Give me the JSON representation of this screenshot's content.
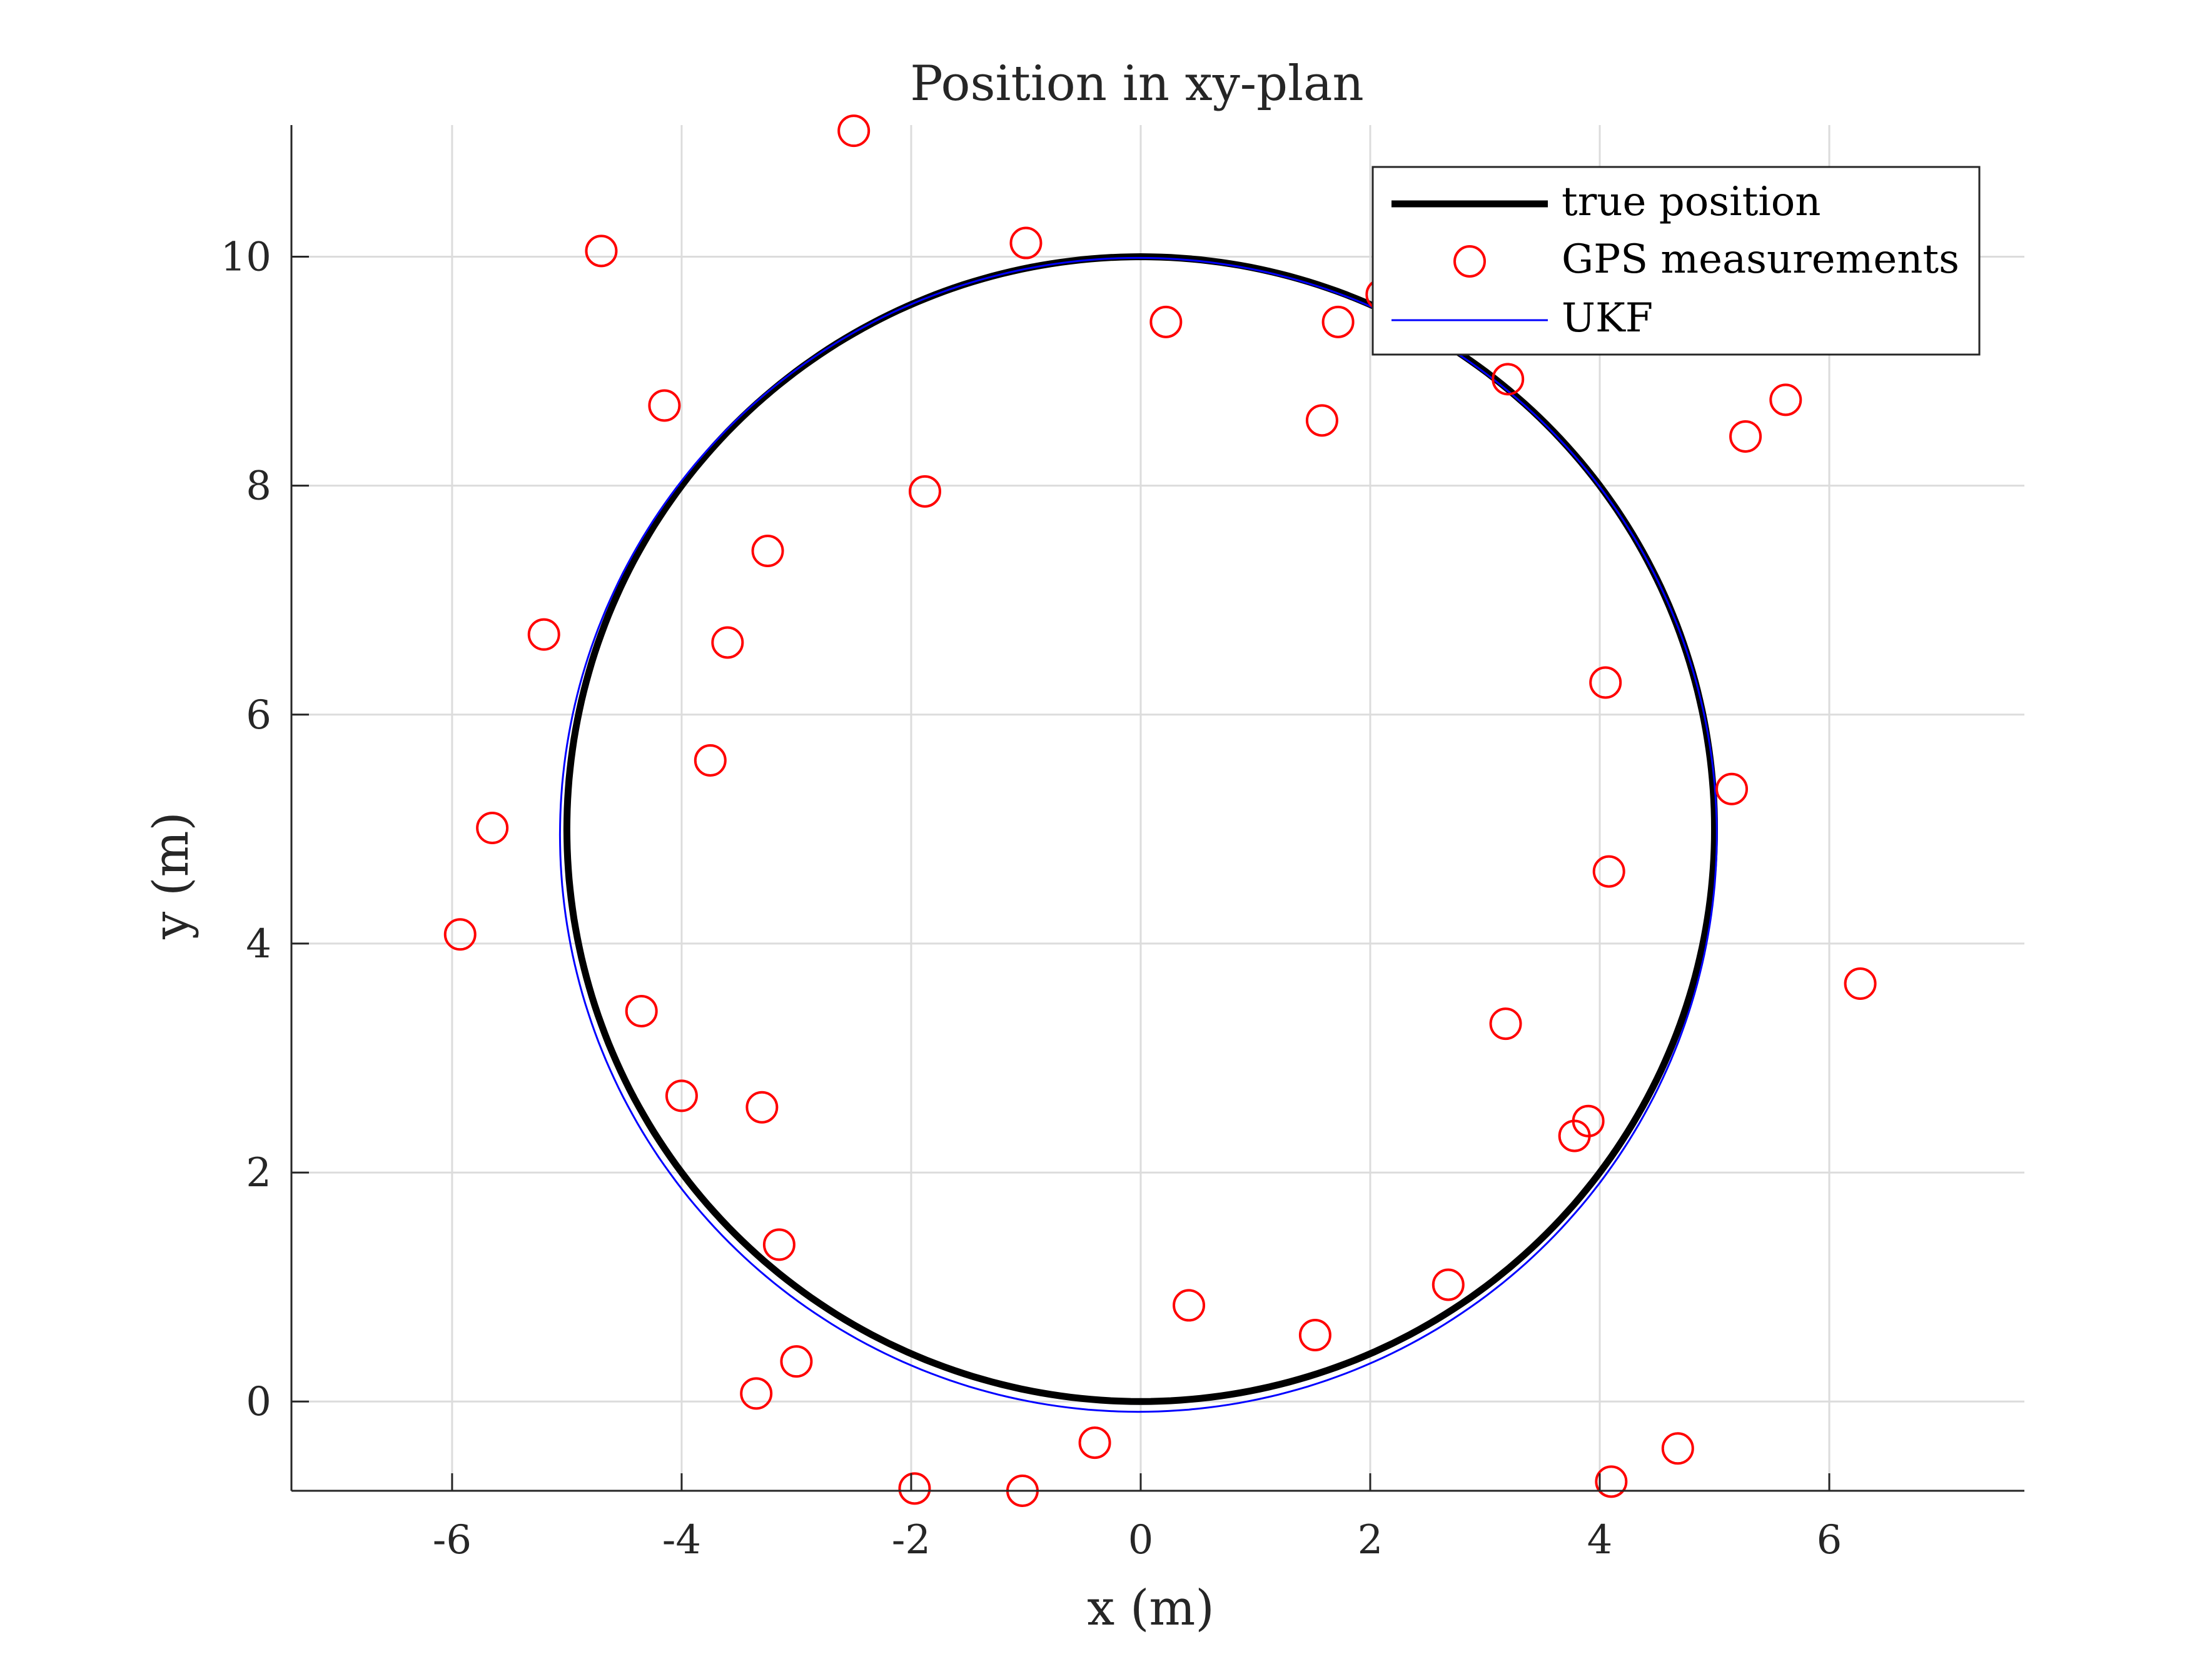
{
  "chart_data": {
    "type": "scatter",
    "title": "Position in xy-plan",
    "xlabel": "x (m)",
    "ylabel": "y (m)",
    "xlim": [
      -7.4,
      7.7
    ],
    "ylim": [
      -0.78,
      11.15
    ],
    "xticks": [
      -6,
      -4,
      -2,
      0,
      2,
      4,
      6
    ],
    "yticks": [
      0,
      2,
      4,
      6,
      8,
      10
    ],
    "xtick_labels": [
      "-6",
      "-4",
      "-2",
      "0",
      "2",
      "4",
      "6"
    ],
    "ytick_labels": [
      "0",
      "2",
      "4",
      "6",
      "8",
      "10"
    ],
    "grid": true,
    "legend_position": "top-right",
    "colors": {
      "true_position": "#000000",
      "gps": "#ff0000",
      "ukf": "#0000ff",
      "grid": "#dcdcdc",
      "axis": "#262626"
    },
    "series": [
      {
        "name": "true position",
        "kind": "line",
        "center": [
          0,
          5
        ],
        "radius": 5
      },
      {
        "name": "GPS measurements",
        "kind": "scatter",
        "points": [
          [
            -2.5,
            11.1
          ],
          [
            -4.7,
            10.05
          ],
          [
            -1.0,
            10.12
          ],
          [
            0.22,
            9.43
          ],
          [
            1.72,
            9.43
          ],
          [
            2.1,
            9.67
          ],
          [
            3.2,
            8.93
          ],
          [
            1.58,
            8.57
          ],
          [
            -4.15,
            8.7
          ],
          [
            -1.88,
            7.95
          ],
          [
            -3.25,
            7.43
          ],
          [
            -5.2,
            6.7
          ],
          [
            -3.6,
            6.63
          ],
          [
            -3.75,
            5.6
          ],
          [
            -5.65,
            5.01
          ],
          [
            -5.93,
            4.08
          ],
          [
            4.05,
            6.28
          ],
          [
            5.15,
            5.35
          ],
          [
            4.08,
            4.63
          ],
          [
            6.27,
            3.65
          ],
          [
            5.27,
            8.43
          ],
          [
            5.62,
            8.75
          ],
          [
            3.18,
            3.3
          ],
          [
            3.9,
            2.45
          ],
          [
            3.78,
            2.32
          ],
          [
            -4.35,
            3.41
          ],
          [
            -4.0,
            2.67
          ],
          [
            -3.3,
            2.57
          ],
          [
            -3.15,
            1.37
          ],
          [
            0.42,
            0.84
          ],
          [
            1.52,
            0.58
          ],
          [
            2.68,
            1.02
          ],
          [
            -3.0,
            0.35
          ],
          [
            -3.35,
            0.07
          ],
          [
            -0.4,
            -0.36
          ],
          [
            -1.97,
            -0.76
          ],
          [
            -1.03,
            -0.78
          ],
          [
            4.68,
            -0.41
          ],
          [
            4.1,
            -0.7
          ]
        ]
      },
      {
        "name": "UKF",
        "kind": "line",
        "center": [
          -0.02,
          4.95
        ],
        "radius": 5.04
      }
    ]
  }
}
